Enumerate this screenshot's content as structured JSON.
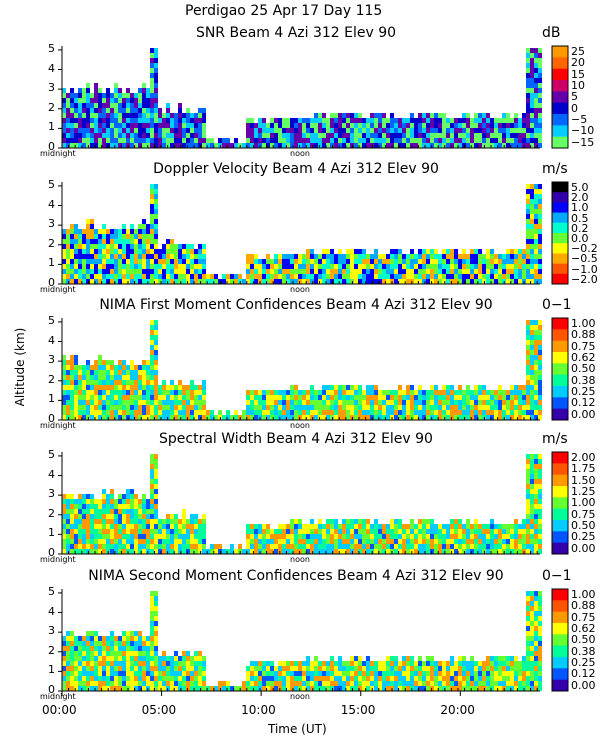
{
  "header": {
    "title_line1": "Perdigao  25 Apr 17 Day 115",
    "xlabel": "Time (UT)",
    "ylabel": "Altitude (km)"
  },
  "chart_data": [
    {
      "type": "heatmap",
      "title": "SNR Beam 4 Azi 312 Elev 90",
      "unit": "dB",
      "ylim": [
        0,
        5.2
      ],
      "yticks": [
        "0",
        "1",
        "2",
        "3",
        "4",
        "5"
      ],
      "axis_marks": [
        "midnight",
        "noon"
      ],
      "colorbar": [
        "25",
        "20",
        "15",
        "10",
        "5",
        "0",
        "−5",
        "−10",
        "−15"
      ],
      "colors": [
        "#ff9900",
        "#ff6600",
        "#ff0000",
        "#cc0066",
        "#6600aa",
        "#0000cc",
        "#0066ff",
        "#00ccff",
        "#66ff66"
      ],
      "xticks": []
    },
    {
      "type": "heatmap",
      "title": "Doppler Velocity Beam 4 Azi 312 Elev 90",
      "unit": "m/s",
      "ylim": [
        0,
        5.2
      ],
      "yticks": [
        "0",
        "1",
        "2",
        "3",
        "4",
        "5"
      ],
      "axis_marks": [
        "midnight",
        "noon"
      ],
      "colorbar": [
        "5.0",
        "2.0",
        "1.0",
        "0.5",
        "0.2",
        "0.0",
        "−0.2",
        "−0.5",
        "−1.0",
        "−2.0"
      ],
      "colors": [
        "#000000",
        "#3300aa",
        "#0000ff",
        "#00aaff",
        "#00ffcc",
        "#66ff33",
        "#ffff00",
        "#ffaa00",
        "#ff5500",
        "#ff0000"
      ],
      "xticks": []
    },
    {
      "type": "heatmap",
      "title": "NIMA First Moment Confidences Beam 4 Azi 312 Elev 90",
      "unit": "0−1",
      "ylim": [
        0,
        5.2
      ],
      "yticks": [
        "0",
        "1",
        "2",
        "3",
        "4",
        "5"
      ],
      "axis_marks": [
        "midnight",
        "noon"
      ],
      "colorbar": [
        "1.00",
        "0.88",
        "0.75",
        "0.62",
        "0.50",
        "0.38",
        "0.25",
        "0.12",
        "0.00"
      ],
      "colors": [
        "#ff0000",
        "#ff5500",
        "#ff9900",
        "#ffff00",
        "#66ff33",
        "#00ff99",
        "#00ccff",
        "#0055ff",
        "#3300aa"
      ],
      "xticks": []
    },
    {
      "type": "heatmap",
      "title": "Spectral Width Beam 4 Azi 312 Elev 90",
      "unit": "m/s",
      "ylim": [
        0,
        5.2
      ],
      "yticks": [
        "0",
        "1",
        "2",
        "3",
        "4",
        "5"
      ],
      "axis_marks": [
        "midnight",
        "noon"
      ],
      "colorbar": [
        "2.00",
        "1.75",
        "1.50",
        "1.25",
        "1.00",
        "0.75",
        "0.50",
        "0.25",
        "0.00"
      ],
      "colors": [
        "#ff0000",
        "#ff5500",
        "#ff9900",
        "#ffff00",
        "#66ff33",
        "#00ff99",
        "#00ccff",
        "#0055ff",
        "#3300aa"
      ],
      "xticks": []
    },
    {
      "type": "heatmap",
      "title": "NIMA Second Moment Confidences Beam 4 Azi 312 Elev 90",
      "unit": "0−1",
      "ylim": [
        0,
        5.2
      ],
      "yticks": [
        "0",
        "1",
        "2",
        "3",
        "4",
        "5"
      ],
      "axis_marks": [
        "midnight",
        "noon"
      ],
      "colorbar": [
        "1.00",
        "0.88",
        "0.75",
        "0.62",
        "0.50",
        "0.38",
        "0.25",
        "0.12",
        "0.00"
      ],
      "colors": [
        "#ff0000",
        "#ff5500",
        "#ff9900",
        "#ffff00",
        "#66ff33",
        "#00ff99",
        "#00ccff",
        "#0055ff",
        "#3300aa"
      ],
      "xticks": [
        "00:00",
        "05:00",
        "10:00",
        "15:00",
        "20:00"
      ]
    }
  ]
}
